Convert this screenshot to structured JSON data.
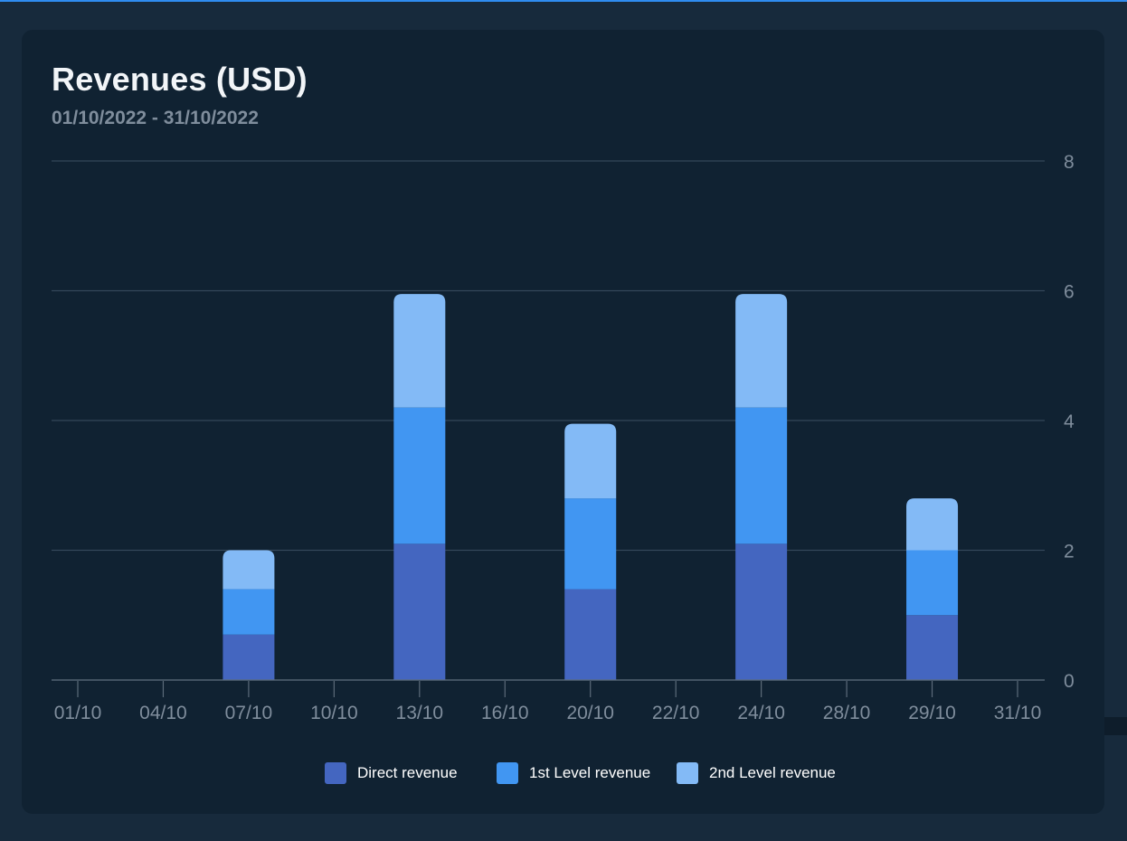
{
  "chart_data": {
    "type": "bar",
    "stacked": true,
    "title": "Revenues (USD)",
    "subtitle": "01/10/2022 - 31/10/2022",
    "categories": [
      "01/10",
      "04/10",
      "07/10",
      "10/10",
      "13/10",
      "16/10",
      "20/10",
      "22/10",
      "24/10",
      "28/10",
      "29/10",
      "31/10"
    ],
    "series": [
      {
        "name": "Direct revenue",
        "color": "#4466c0",
        "values": [
          0,
          0,
          0.7,
          0,
          2.1,
          0,
          1.4,
          0,
          2.1,
          0,
          1.0,
          0
        ]
      },
      {
        "name": "1st Level revenue",
        "color": "#4196f2",
        "values": [
          0,
          0,
          0.7,
          0,
          2.1,
          0,
          1.4,
          0,
          2.1,
          0,
          1.0,
          0
        ]
      },
      {
        "name": "2nd Level revenue",
        "color": "#83baf6",
        "values": [
          0,
          0,
          0.6,
          0,
          1.75,
          0,
          1.15,
          0,
          1.75,
          0,
          0.8,
          0
        ]
      }
    ],
    "y_axis": {
      "position": "right",
      "ylim": [
        0,
        8
      ],
      "ticks": [
        0,
        2,
        4,
        6,
        8
      ]
    },
    "grid": true,
    "legend": "bottom-center"
  },
  "colors": {
    "page_bg": "#172a3c",
    "card_bg": "#102232",
    "gridline": "#33475a",
    "axis_text": "#7f8d9c",
    "accent": "#2f8cf0"
  }
}
